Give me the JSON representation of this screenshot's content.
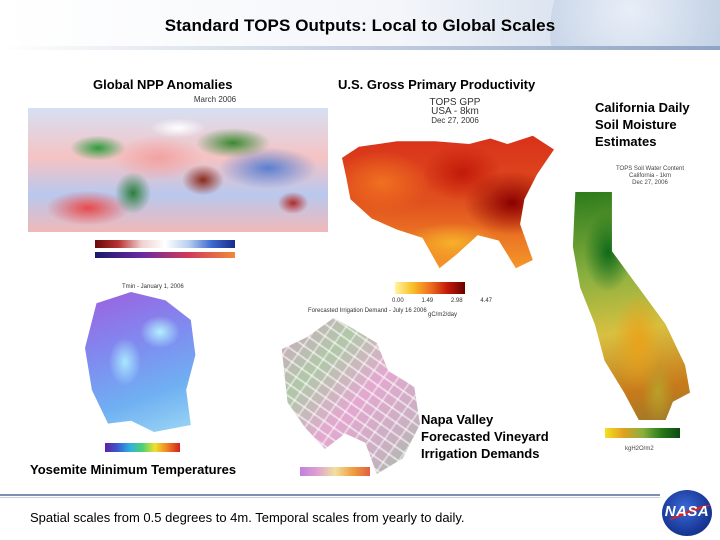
{
  "slide": {
    "title": "Standard TOPS Outputs: Local to Global Scales",
    "footer": "Spatial scales from 0.5 degrees to 4m. Temporal scales from yearly to daily."
  },
  "panels": {
    "npp": {
      "label": "Global NPP Anomalies",
      "header": "March 2006"
    },
    "gpp": {
      "label": "U.S. Gross Primary Productivity",
      "header_line1": "TOPS GPP",
      "header_line2": "USA - 8km",
      "header_line3": "Dec 27, 2006",
      "ticks": [
        "0.00",
        "1.49",
        "2.98",
        "4.47"
      ],
      "units": "gC/m2/day"
    },
    "california": {
      "label": "California Daily Soil Moisture Estimates",
      "header_line1": "TOPS Soil Water Content",
      "header_line2": "California - 1km",
      "header_line3": "Dec 27, 2006",
      "units": "kgH2O/m2"
    },
    "yosemite": {
      "label": "Yosemite Minimum Temperatures",
      "header": "Tmin - January 1, 2006"
    },
    "napa": {
      "label": "Napa Valley Forecasted Vineyard Irrigation Demands",
      "header": "Forecasted Irrigation Demand - July 16 2006"
    }
  },
  "logo": {
    "text": "NASA",
    "colors": {
      "disc": "#1a3a9a",
      "swoosh": "#e02020"
    }
  }
}
